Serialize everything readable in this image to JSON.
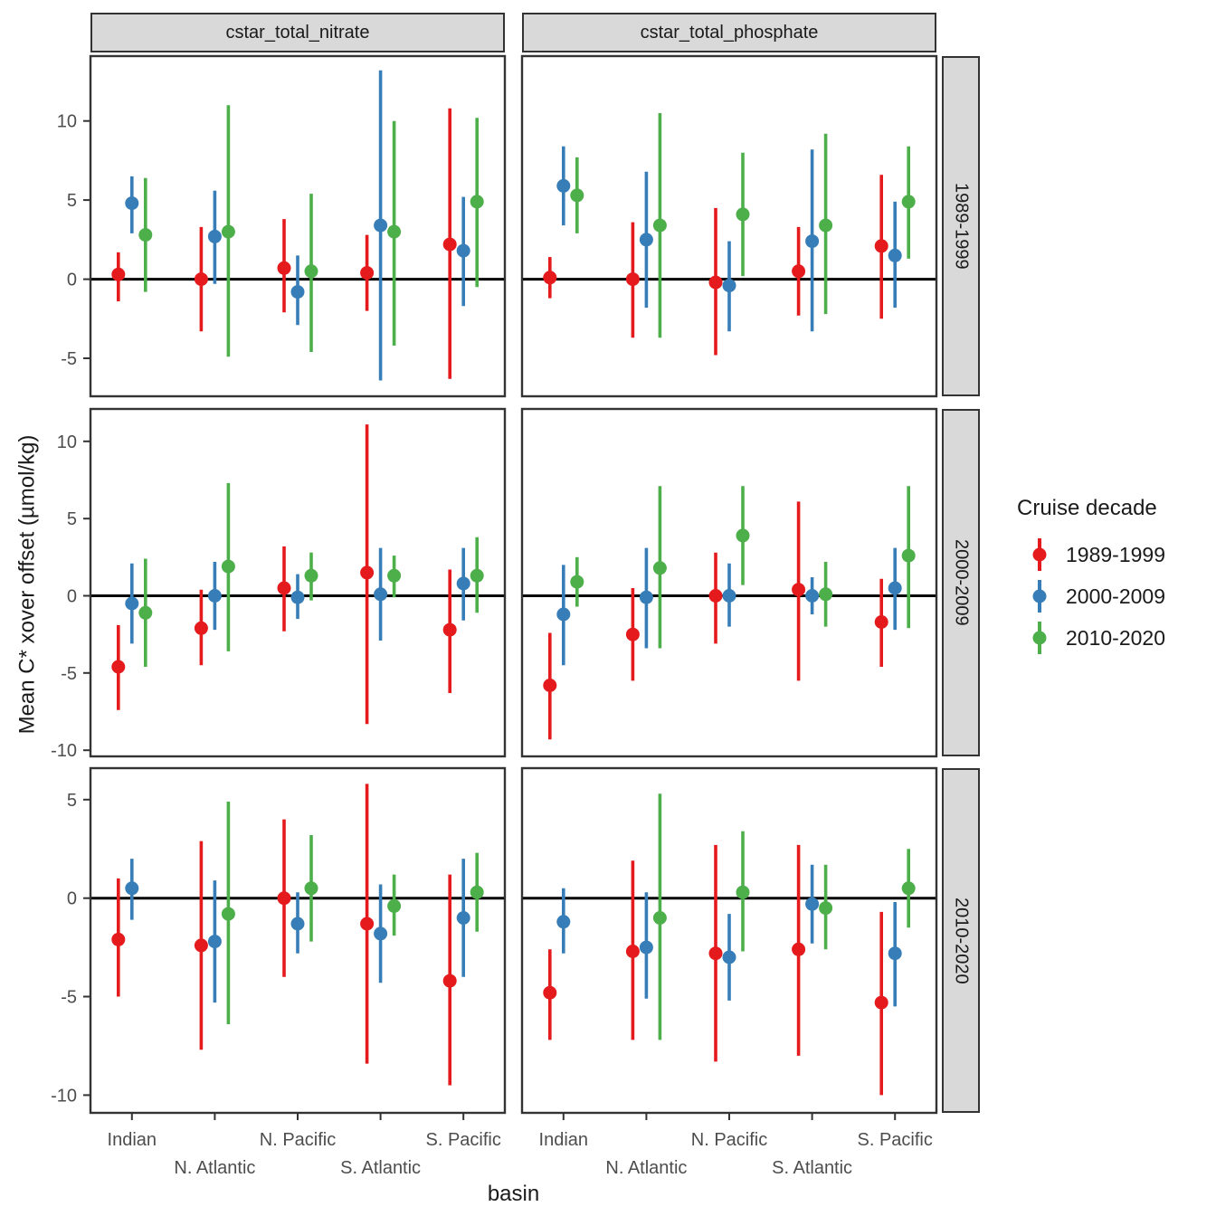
{
  "chart_data": {
    "type": "pointrange",
    "title": "",
    "xlabel": "basin",
    "ylabel": "Mean C* xover offset (µmol/kg)",
    "legend_title": "Cruise decade",
    "legend_position": "right",
    "grid": false,
    "categories": [
      "Indian",
      "N. Atlantic",
      "N. Pacific",
      "S. Atlantic",
      "S. Pacific"
    ],
    "col_facets": [
      "cstar_total_nitrate",
      "cstar_total_phosphate"
    ],
    "row_facets": [
      "1989-1999",
      "2000-2009",
      "2010-2020"
    ],
    "series": [
      {
        "label": "1989-1999",
        "color": "#E41A1C"
      },
      {
        "label": "2000-2009",
        "color": "#377EB8"
      },
      {
        "label": "2010-2020",
        "color": "#4DAF4A"
      }
    ],
    "rows": [
      {
        "label": "1989-1999",
        "ylim": [
          -7.4,
          14.1
        ],
        "yticks": [
          -5,
          0,
          5,
          10
        ],
        "panels": [
          {
            "facet": "cstar_total_nitrate",
            "points": [
              {
                "basin": "Indian",
                "decade": "1989-1999",
                "y": 0.3,
                "lo": -1.4,
                "hi": 1.7
              },
              {
                "basin": "Indian",
                "decade": "2000-2009",
                "y": 4.8,
                "lo": 2.9,
                "hi": 6.5
              },
              {
                "basin": "Indian",
                "decade": "2010-2020",
                "y": 2.8,
                "lo": -0.8,
                "hi": 6.4
              },
              {
                "basin": "N. Atlantic",
                "decade": "1989-1999",
                "y": 0.0,
                "lo": -3.3,
                "hi": 3.3
              },
              {
                "basin": "N. Atlantic",
                "decade": "2000-2009",
                "y": 2.7,
                "lo": -0.3,
                "hi": 5.6
              },
              {
                "basin": "N. Atlantic",
                "decade": "2010-2020",
                "y": 3.0,
                "lo": -4.9,
                "hi": 11.0
              },
              {
                "basin": "N. Pacific",
                "decade": "1989-1999",
                "y": 0.7,
                "lo": -2.1,
                "hi": 3.8
              },
              {
                "basin": "N. Pacific",
                "decade": "2000-2009",
                "y": -0.8,
                "lo": -2.9,
                "hi": 1.5
              },
              {
                "basin": "N. Pacific",
                "decade": "2010-2020",
                "y": 0.5,
                "lo": -4.6,
                "hi": 5.4
              },
              {
                "basin": "S. Atlantic",
                "decade": "1989-1999",
                "y": 0.4,
                "lo": -2.0,
                "hi": 2.8
              },
              {
                "basin": "S. Atlantic",
                "decade": "2000-2009",
                "y": 3.4,
                "lo": -6.4,
                "hi": 13.2
              },
              {
                "basin": "S. Atlantic",
                "decade": "2010-2020",
                "y": 3.0,
                "lo": -4.2,
                "hi": 10.0
              },
              {
                "basin": "S. Pacific",
                "decade": "1989-1999",
                "y": 2.2,
                "lo": -6.3,
                "hi": 10.8
              },
              {
                "basin": "S. Pacific",
                "decade": "2000-2009",
                "y": 1.8,
                "lo": -1.7,
                "hi": 5.2
              },
              {
                "basin": "S. Pacific",
                "decade": "2010-2020",
                "y": 4.9,
                "lo": -0.5,
                "hi": 10.2
              }
            ]
          },
          {
            "facet": "cstar_total_phosphate",
            "points": [
              {
                "basin": "Indian",
                "decade": "1989-1999",
                "y": 0.1,
                "lo": -1.2,
                "hi": 1.4
              },
              {
                "basin": "Indian",
                "decade": "2000-2009",
                "y": 5.9,
                "lo": 3.4,
                "hi": 8.4
              },
              {
                "basin": "Indian",
                "decade": "2010-2020",
                "y": 5.3,
                "lo": 2.9,
                "hi": 7.7
              },
              {
                "basin": "N. Atlantic",
                "decade": "1989-1999",
                "y": 0.0,
                "lo": -3.7,
                "hi": 3.6
              },
              {
                "basin": "N. Atlantic",
                "decade": "2000-2009",
                "y": 2.5,
                "lo": -1.8,
                "hi": 6.8
              },
              {
                "basin": "N. Atlantic",
                "decade": "2010-2020",
                "y": 3.4,
                "lo": -3.7,
                "hi": 10.5
              },
              {
                "basin": "N. Pacific",
                "decade": "1989-1999",
                "y": -0.2,
                "lo": -4.8,
                "hi": 4.5
              },
              {
                "basin": "N. Pacific",
                "decade": "2000-2009",
                "y": -0.4,
                "lo": -3.3,
                "hi": 2.4
              },
              {
                "basin": "N. Pacific",
                "decade": "2010-2020",
                "y": 4.1,
                "lo": 0.2,
                "hi": 8.0
              },
              {
                "basin": "S. Atlantic",
                "decade": "1989-1999",
                "y": 0.5,
                "lo": -2.3,
                "hi": 3.3
              },
              {
                "basin": "S. Atlantic",
                "decade": "2000-2009",
                "y": 2.4,
                "lo": -3.3,
                "hi": 8.2
              },
              {
                "basin": "S. Atlantic",
                "decade": "2010-2020",
                "y": 3.4,
                "lo": -2.2,
                "hi": 9.2
              },
              {
                "basin": "S. Pacific",
                "decade": "1989-1999",
                "y": 2.1,
                "lo": -2.5,
                "hi": 6.6
              },
              {
                "basin": "S. Pacific",
                "decade": "2000-2009",
                "y": 1.5,
                "lo": -1.8,
                "hi": 4.9
              },
              {
                "basin": "S. Pacific",
                "decade": "2010-2020",
                "y": 4.9,
                "lo": 1.3,
                "hi": 8.4
              }
            ]
          }
        ]
      },
      {
        "label": "2000-2009",
        "ylim": [
          -10.4,
          12.1
        ],
        "yticks": [
          -10,
          -5,
          0,
          5,
          10
        ],
        "panels": [
          {
            "facet": "cstar_total_nitrate",
            "points": [
              {
                "basin": "Indian",
                "decade": "1989-1999",
                "y": -4.6,
                "lo": -7.4,
                "hi": -1.9
              },
              {
                "basin": "Indian",
                "decade": "2000-2009",
                "y": -0.5,
                "lo": -3.1,
                "hi": 2.1
              },
              {
                "basin": "Indian",
                "decade": "2010-2020",
                "y": -1.1,
                "lo": -4.6,
                "hi": 2.4
              },
              {
                "basin": "N. Atlantic",
                "decade": "1989-1999",
                "y": -2.1,
                "lo": -4.5,
                "hi": 0.4
              },
              {
                "basin": "N. Atlantic",
                "decade": "2000-2009",
                "y": 0.0,
                "lo": -2.2,
                "hi": 2.2
              },
              {
                "basin": "N. Atlantic",
                "decade": "2010-2020",
                "y": 1.9,
                "lo": -3.6,
                "hi": 7.3
              },
              {
                "basin": "N. Pacific",
                "decade": "1989-1999",
                "y": 0.5,
                "lo": -2.3,
                "hi": 3.2
              },
              {
                "basin": "N. Pacific",
                "decade": "2000-2009",
                "y": -0.1,
                "lo": -1.5,
                "hi": 1.4
              },
              {
                "basin": "N. Pacific",
                "decade": "2010-2020",
                "y": 1.3,
                "lo": -0.3,
                "hi": 2.8
              },
              {
                "basin": "S. Atlantic",
                "decade": "1989-1999",
                "y": 1.5,
                "lo": -8.3,
                "hi": 11.1
              },
              {
                "basin": "S. Atlantic",
                "decade": "2000-2009",
                "y": 0.1,
                "lo": -2.9,
                "hi": 3.1
              },
              {
                "basin": "S. Atlantic",
                "decade": "2010-2020",
                "y": 1.3,
                "lo": -0.1,
                "hi": 2.6
              },
              {
                "basin": "S. Pacific",
                "decade": "1989-1999",
                "y": -2.2,
                "lo": -6.3,
                "hi": 1.7
              },
              {
                "basin": "S. Pacific",
                "decade": "2000-2009",
                "y": 0.8,
                "lo": -1.6,
                "hi": 3.1
              },
              {
                "basin": "S. Pacific",
                "decade": "2010-2020",
                "y": 1.3,
                "lo": -1.1,
                "hi": 3.8
              }
            ]
          },
          {
            "facet": "cstar_total_phosphate",
            "points": [
              {
                "basin": "Indian",
                "decade": "1989-1999",
                "y": -5.8,
                "lo": -9.3,
                "hi": -2.4
              },
              {
                "basin": "Indian",
                "decade": "2000-2009",
                "y": -1.2,
                "lo": -4.5,
                "hi": 2.0
              },
              {
                "basin": "Indian",
                "decade": "2010-2020",
                "y": 0.9,
                "lo": -0.7,
                "hi": 2.5
              },
              {
                "basin": "N. Atlantic",
                "decade": "1989-1999",
                "y": -2.5,
                "lo": -5.5,
                "hi": 0.5
              },
              {
                "basin": "N. Atlantic",
                "decade": "2000-2009",
                "y": -0.1,
                "lo": -3.4,
                "hi": 3.1
              },
              {
                "basin": "N. Atlantic",
                "decade": "2010-2020",
                "y": 1.8,
                "lo": -3.4,
                "hi": 7.1
              },
              {
                "basin": "N. Pacific",
                "decade": "1989-1999",
                "y": 0.0,
                "lo": -3.1,
                "hi": 2.8
              },
              {
                "basin": "N. Pacific",
                "decade": "2000-2009",
                "y": 0.0,
                "lo": -2.0,
                "hi": 2.1
              },
              {
                "basin": "N. Pacific",
                "decade": "2010-2020",
                "y": 3.9,
                "lo": 0.7,
                "hi": 7.1
              },
              {
                "basin": "S. Atlantic",
                "decade": "1989-1999",
                "y": 0.4,
                "lo": -5.5,
                "hi": 6.1
              },
              {
                "basin": "S. Atlantic",
                "decade": "2000-2009",
                "y": 0.0,
                "lo": -1.2,
                "hi": 1.2
              },
              {
                "basin": "S. Atlantic",
                "decade": "2010-2020",
                "y": 0.1,
                "lo": -2.0,
                "hi": 2.2
              },
              {
                "basin": "S. Pacific",
                "decade": "1989-1999",
                "y": -1.7,
                "lo": -4.6,
                "hi": 1.1
              },
              {
                "basin": "S. Pacific",
                "decade": "2000-2009",
                "y": 0.5,
                "lo": -2.2,
                "hi": 3.1
              },
              {
                "basin": "S. Pacific",
                "decade": "2010-2020",
                "y": 2.6,
                "lo": -2.1,
                "hi": 7.1
              }
            ]
          }
        ]
      },
      {
        "label": "2010-2020",
        "ylim": [
          -10.9,
          6.6
        ],
        "yticks": [
          -10,
          -5,
          0,
          5
        ],
        "panels": [
          {
            "facet": "cstar_total_nitrate",
            "points": [
              {
                "basin": "Indian",
                "decade": "1989-1999",
                "y": -2.1,
                "lo": -5.0,
                "hi": 1.0
              },
              {
                "basin": "Indian",
                "decade": "2000-2009",
                "y": 0.5,
                "lo": -1.1,
                "hi": 2.0
              },
              {
                "basin": "N. Atlantic",
                "decade": "1989-1999",
                "y": -2.4,
                "lo": -7.7,
                "hi": 2.9
              },
              {
                "basin": "N. Atlantic",
                "decade": "2000-2009",
                "y": -2.2,
                "lo": -5.3,
                "hi": 0.9
              },
              {
                "basin": "N. Atlantic",
                "decade": "2010-2020",
                "y": -0.8,
                "lo": -6.4,
                "hi": 4.9
              },
              {
                "basin": "N. Pacific",
                "decade": "1989-1999",
                "y": 0.0,
                "lo": -4.0,
                "hi": 4.0
              },
              {
                "basin": "N. Pacific",
                "decade": "2000-2009",
                "y": -1.3,
                "lo": -2.8,
                "hi": 0.3
              },
              {
                "basin": "N. Pacific",
                "decade": "2010-2020",
                "y": 0.5,
                "lo": -2.2,
                "hi": 3.2
              },
              {
                "basin": "S. Atlantic",
                "decade": "1989-1999",
                "y": -1.3,
                "lo": -8.4,
                "hi": 5.8
              },
              {
                "basin": "S. Atlantic",
                "decade": "2000-2009",
                "y": -1.8,
                "lo": -4.3,
                "hi": 0.7
              },
              {
                "basin": "S. Atlantic",
                "decade": "2010-2020",
                "y": -0.4,
                "lo": -1.9,
                "hi": 1.2
              },
              {
                "basin": "S. Pacific",
                "decade": "1989-1999",
                "y": -4.2,
                "lo": -9.5,
                "hi": 1.2
              },
              {
                "basin": "S. Pacific",
                "decade": "2000-2009",
                "y": -1.0,
                "lo": -4.0,
                "hi": 2.0
              },
              {
                "basin": "S. Pacific",
                "decade": "2010-2020",
                "y": 0.3,
                "lo": -1.7,
                "hi": 2.3
              }
            ]
          },
          {
            "facet": "cstar_total_phosphate",
            "points": [
              {
                "basin": "Indian",
                "decade": "1989-1999",
                "y": -4.8,
                "lo": -7.2,
                "hi": -2.6
              },
              {
                "basin": "Indian",
                "decade": "2000-2009",
                "y": -1.2,
                "lo": -2.8,
                "hi": 0.5
              },
              {
                "basin": "N. Atlantic",
                "decade": "1989-1999",
                "y": -2.7,
                "lo": -7.2,
                "hi": 1.9
              },
              {
                "basin": "N. Atlantic",
                "decade": "2000-2009",
                "y": -2.5,
                "lo": -5.1,
                "hi": 0.3
              },
              {
                "basin": "N. Atlantic",
                "decade": "2010-2020",
                "y": -1.0,
                "lo": -7.2,
                "hi": 5.3
              },
              {
                "basin": "N. Pacific",
                "decade": "1989-1999",
                "y": -2.8,
                "lo": -8.3,
                "hi": 2.7
              },
              {
                "basin": "N. Pacific",
                "decade": "2000-2009",
                "y": -3.0,
                "lo": -5.2,
                "hi": -0.8
              },
              {
                "basin": "N. Pacific",
                "decade": "2010-2020",
                "y": 0.3,
                "lo": -2.7,
                "hi": 3.4
              },
              {
                "basin": "S. Atlantic",
                "decade": "1989-1999",
                "y": -2.6,
                "lo": -8.0,
                "hi": 2.7
              },
              {
                "basin": "S. Atlantic",
                "decade": "2000-2009",
                "y": -0.3,
                "lo": -2.3,
                "hi": 1.7
              },
              {
                "basin": "S. Atlantic",
                "decade": "2010-2020",
                "y": -0.5,
                "lo": -2.6,
                "hi": 1.7
              },
              {
                "basin": "S. Pacific",
                "decade": "1989-1999",
                "y": -5.3,
                "lo": -10.0,
                "hi": -0.7
              },
              {
                "basin": "S. Pacific",
                "decade": "2000-2009",
                "y": -2.8,
                "lo": -5.5,
                "hi": -0.2
              },
              {
                "basin": "S. Pacific",
                "decade": "2010-2020",
                "y": 0.5,
                "lo": -1.5,
                "hi": 2.5
              }
            ]
          }
        ]
      }
    ]
  }
}
